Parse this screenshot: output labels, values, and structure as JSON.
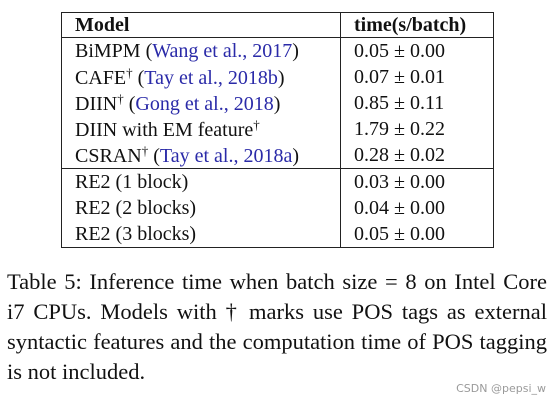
{
  "table": {
    "headers": {
      "model": "Model",
      "time": "time(s/batch)"
    },
    "rows": [
      {
        "name": "BiMPM",
        "dagger": "",
        "cite": "Wang et al., 2017",
        "time": "0.05 ± 0.00"
      },
      {
        "name": "CAFE",
        "dagger": "†",
        "cite": "Tay et al., 2018b",
        "time": "0.07 ± 0.01"
      },
      {
        "name": "DIIN",
        "dagger": "†",
        "cite": "Gong et al., 2018",
        "time": "0.85 ± 0.11"
      },
      {
        "name": "DIIN with EM feature",
        "dagger": "†",
        "cite": "",
        "time": "1.79 ± 0.22"
      },
      {
        "name": "CSRAN",
        "dagger": "†",
        "cite": "Tay et al., 2018a",
        "time": "0.28 ± 0.02"
      },
      {
        "name": "RE2 (1 block)",
        "dagger": "",
        "cite": "",
        "time": "0.03 ± 0.00"
      },
      {
        "name": "RE2 (2 blocks)",
        "dagger": "",
        "cite": "",
        "time": "0.04 ± 0.00"
      },
      {
        "name": "RE2 (3 blocks)",
        "dagger": "",
        "cite": "",
        "time": "0.05 ± 0.00"
      }
    ]
  },
  "caption": "Table 5: Inference time when batch size = 8 on Intel Core i7 CPUs. Models with † marks use POS tags as external syntactic features and the computation time of POS tagging is not included.",
  "watermark": "CSDN @pepsi_w"
}
